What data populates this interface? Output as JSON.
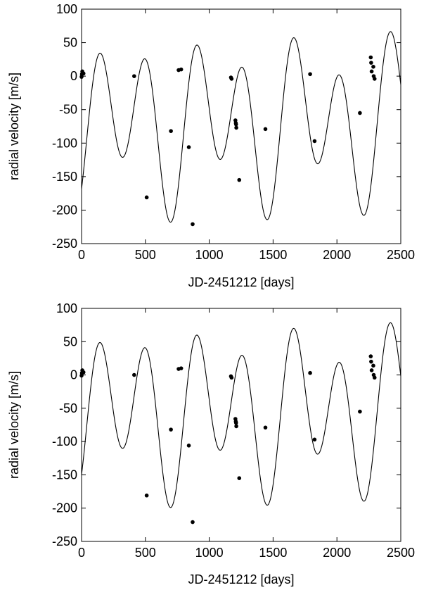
{
  "chart_data": [
    {
      "type": "scatter",
      "title": "",
      "xlabel": "JD-2451212 [days]",
      "ylabel": "radial velocity [m/s]",
      "xlim": [
        0,
        2500
      ],
      "ylim": [
        -250,
        100
      ],
      "xticks": [
        "0",
        "500",
        "1000",
        "1500",
        "2000",
        "2500"
      ],
      "yticks": [
        "100",
        "50",
        "0",
        "-50",
        "-100",
        "-150",
        "-200",
        "-250"
      ],
      "grid": false,
      "legend": "none",
      "series": [
        {
          "kind": "points",
          "color": "#000000",
          "x": [
            0,
            3,
            6,
            12,
            15,
            412,
            510,
            700,
            760,
            780,
            840,
            870,
            1170,
            1175,
            1205,
            1208,
            1210,
            1212,
            1235,
            1440,
            1790,
            1825,
            2180,
            2265,
            2268,
            2272,
            2285,
            2288,
            2295
          ],
          "y": [
            -1,
            3,
            7,
            4,
            4,
            0,
            -181,
            -82,
            9,
            10,
            -106,
            -221,
            -2,
            -4,
            -66,
            -70,
            -72,
            -77,
            -155,
            -79,
            3,
            -97,
            -55,
            28,
            20,
            7,
            14,
            0,
            -4
          ]
        },
        {
          "kind": "line",
          "color": "#000000",
          "model": {
            "offset": -70,
            "period_a": 380,
            "amp_a": 100,
            "phase_a": 130,
            "period_b": 730,
            "amp_b": 49,
            "phase_b": 310
          }
        }
      ]
    },
    {
      "type": "scatter",
      "title": "",
      "xlabel": "JD-2451212 [days]",
      "ylabel": "radial velocity [m/s]",
      "xlim": [
        0,
        2500
      ],
      "ylim": [
        -250,
        100
      ],
      "xticks": [
        "0",
        "500",
        "1000",
        "1500",
        "2000",
        "2500"
      ],
      "yticks": [
        "100",
        "50",
        "0",
        "-50",
        "-100",
        "-150",
        "-200",
        "-250"
      ],
      "grid": false,
      "legend": "none",
      "series": [
        {
          "kind": "points",
          "color": "#000000",
          "x": [
            0,
            3,
            6,
            12,
            15,
            412,
            510,
            700,
            760,
            780,
            840,
            870,
            1170,
            1175,
            1205,
            1208,
            1210,
            1212,
            1235,
            1440,
            1790,
            1825,
            2180,
            2265,
            2268,
            2272,
            2285,
            2288,
            2295
          ],
          "y": [
            -1,
            3,
            7,
            4,
            4,
            0,
            -181,
            -82,
            9,
            10,
            -106,
            -221,
            -2,
            -4,
            -66,
            -70,
            -72,
            -77,
            -155,
            -79,
            3,
            -97,
            -55,
            28,
            20,
            7,
            14,
            0,
            -4
          ]
        },
        {
          "kind": "line",
          "color": "#000000",
          "model": {
            "offset": -55,
            "period_a": 380,
            "amp_a": 100,
            "phase_a": 130,
            "period_b": 730,
            "amp_b": 45,
            "phase_b": 310
          }
        }
      ]
    }
  ]
}
